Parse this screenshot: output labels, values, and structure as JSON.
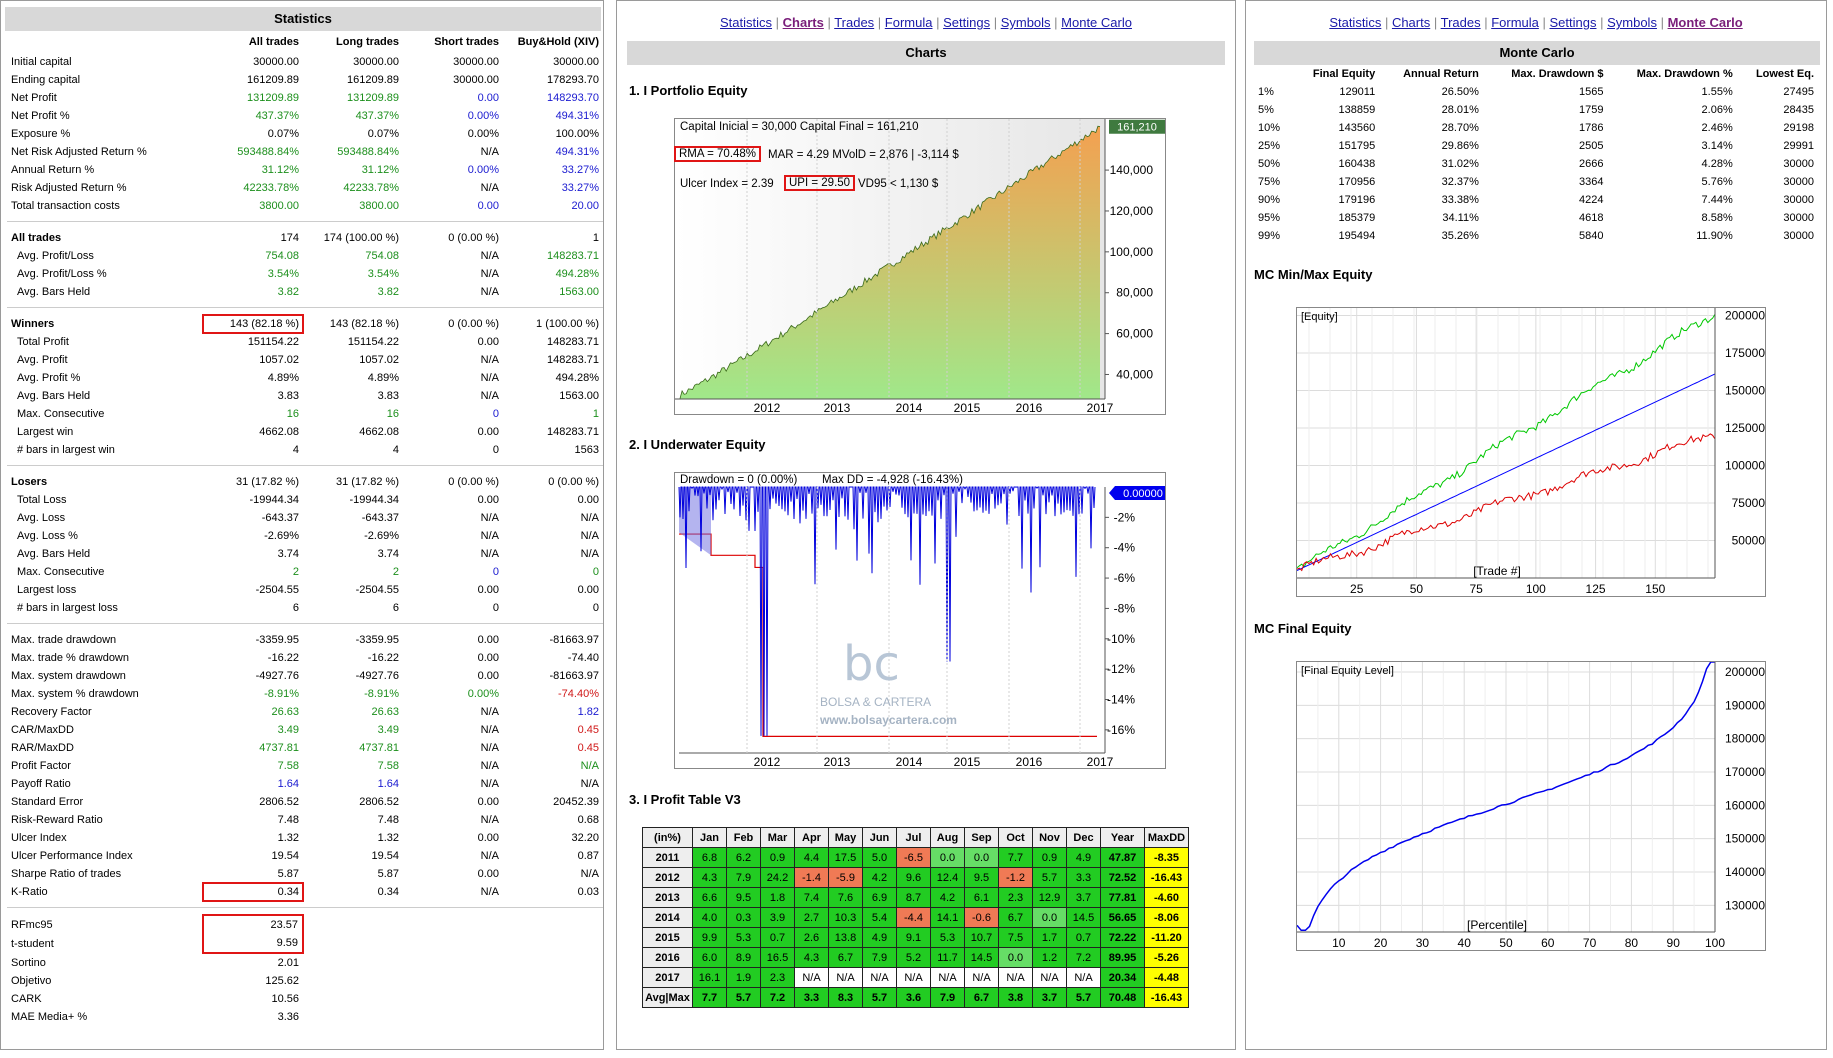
{
  "statistics": {
    "title": "Statistics",
    "headers": [
      "",
      "All trades",
      "Long trades",
      "Short trades",
      "Buy&Hold (XIV)"
    ],
    "rows": [
      [
        "Initial capital",
        "30000.00",
        "30000.00",
        "30000.00",
        "30000.00"
      ],
      [
        "Ending capital",
        "161209.89",
        "161209.89",
        "30000.00",
        "178293.70"
      ],
      [
        "Net Profit",
        "131209.89",
        "131209.89",
        "0.00",
        "148293.70"
      ],
      [
        "Net Profit %",
        "437.37%",
        "437.37%",
        "0.00%",
        "494.31%"
      ],
      [
        "Exposure %",
        "0.07%",
        "0.07%",
        "0.00%",
        "100.00%"
      ],
      [
        "Net Risk Adjusted Return %",
        "593488.84%",
        "593488.84%",
        "N/A",
        "494.31%"
      ],
      [
        "Annual Return %",
        "31.12%",
        "31.12%",
        "0.00%",
        "33.27%"
      ],
      [
        "Risk Adjusted Return %",
        "42233.78%",
        "42233.78%",
        "N/A",
        "33.27%"
      ],
      [
        "Total transaction costs",
        "3800.00",
        "3800.00",
        "0.00",
        "20.00"
      ],
      null,
      [
        "All trades",
        "174",
        "174 (100.00 %)",
        "0 (0.00 %)",
        "1"
      ],
      [
        "Avg. Profit/Loss",
        "754.08",
        "754.08",
        "N/A",
        "148283.71"
      ],
      [
        "Avg. Profit/Loss %",
        "3.54%",
        "3.54%",
        "N/A",
        "494.28%"
      ],
      [
        "Avg. Bars Held",
        "3.82",
        "3.82",
        "N/A",
        "1563.00"
      ],
      null,
      [
        "Winners",
        "143 (82.18 %)",
        "143 (82.18 %)",
        "0 (0.00 %)",
        "1 (100.00 %)"
      ],
      [
        "Total Profit",
        "151154.22",
        "151154.22",
        "0.00",
        "148283.71"
      ],
      [
        "Avg. Profit",
        "1057.02",
        "1057.02",
        "N/A",
        "148283.71"
      ],
      [
        "Avg. Profit %",
        "4.89%",
        "4.89%",
        "N/A",
        "494.28%"
      ],
      [
        "Avg. Bars Held",
        "3.83",
        "3.83",
        "N/A",
        "1563.00"
      ],
      [
        "Max. Consecutive",
        "16",
        "16",
        "0",
        "1"
      ],
      [
        "Largest win",
        "4662.08",
        "4662.08",
        "0.00",
        "148283.71"
      ],
      [
        "# bars in largest win",
        "4",
        "4",
        "0",
        "1563"
      ],
      null,
      [
        "Losers",
        "31 (17.82 %)",
        "31 (17.82 %)",
        "0 (0.00 %)",
        "0 (0.00 %)"
      ],
      [
        "Total Loss",
        "-19944.34",
        "-19944.34",
        "0.00",
        "0.00"
      ],
      [
        "Avg. Loss",
        "-643.37",
        "-643.37",
        "N/A",
        "N/A"
      ],
      [
        "Avg. Loss %",
        "-2.69%",
        "-2.69%",
        "N/A",
        "N/A"
      ],
      [
        "Avg. Bars Held",
        "3.74",
        "3.74",
        "N/A",
        "N/A"
      ],
      [
        "Max. Consecutive",
        "2",
        "2",
        "0",
        "0"
      ],
      [
        "Largest loss",
        "-2504.55",
        "-2504.55",
        "0.00",
        "0.00"
      ],
      [
        "# bars in largest loss",
        "6",
        "6",
        "0",
        "0"
      ],
      null,
      [
        "Max. trade drawdown",
        "-3359.95",
        "-3359.95",
        "0.00",
        "-81663.97"
      ],
      [
        "Max. trade % drawdown",
        "-16.22",
        "-16.22",
        "0.00",
        "-74.40"
      ],
      [
        "Max. system drawdown",
        "-4927.76",
        "-4927.76",
        "0.00",
        "-81663.97"
      ],
      [
        "Max. system % drawdown",
        "-8.91%",
        "-8.91%",
        "0.00%",
        "-74.40%"
      ],
      [
        "Recovery Factor",
        "26.63",
        "26.63",
        "N/A",
        "1.82"
      ],
      [
        "CAR/MaxDD",
        "3.49",
        "3.49",
        "N/A",
        "0.45"
      ],
      [
        "RAR/MaxDD",
        "4737.81",
        "4737.81",
        "N/A",
        "0.45"
      ],
      [
        "Profit Factor",
        "7.58",
        "7.58",
        "N/A",
        "N/A"
      ],
      [
        "Payoff Ratio",
        "1.64",
        "1.64",
        "N/A",
        "N/A"
      ],
      [
        "Standard Error",
        "2806.52",
        "2806.52",
        "0.00",
        "20452.39"
      ],
      [
        "Risk-Reward Ratio",
        "7.48",
        "7.48",
        "N/A",
        "0.68"
      ],
      [
        "Ulcer Index",
        "1.32",
        "1.32",
        "0.00",
        "32.20"
      ],
      [
        "Ulcer Performance Index",
        "19.54",
        "19.54",
        "N/A",
        "0.87"
      ],
      [
        "Sharpe Ratio of trades",
        "5.87",
        "5.87",
        "0.00",
        "N/A"
      ],
      [
        "K-Ratio",
        "0.34",
        "0.34",
        "N/A",
        "0.03"
      ],
      null,
      [
        "RFmc95",
        "23.57",
        "",
        "",
        ""
      ],
      [
        "t-student",
        "9.59",
        "",
        "",
        ""
      ],
      [
        "Sortino",
        "2.01",
        "",
        "",
        ""
      ],
      [
        "Objetivo",
        "125.62",
        "",
        "",
        ""
      ],
      [
        "CARK",
        "10.56",
        "",
        "",
        ""
      ],
      [
        "MAE Media+ %",
        "3.36",
        "",
        "",
        ""
      ]
    ]
  },
  "nav": {
    "items": [
      "Statistics",
      "Charts",
      "Trades",
      "Formula",
      "Settings",
      "Symbols",
      "Monte Carlo"
    ]
  },
  "charts": {
    "title": "Charts",
    "s1": "1. I Portfolio Equity",
    "s2": "2. I Underwater Equity",
    "s3": "3. I Profit Table V3",
    "eq": {
      "line1": "Capital Inicial = 30,000   Capital Final = 161,210",
      "rma": "RMA = 70.48%",
      "mar": "MAR = 4.29   MVolD = 2,876 | -3,114 $",
      "ulcer": "Ulcer Index = 2.39",
      "upi": "UPI = 29.50",
      "vd": "VD95 < 1,130 $",
      "last": "161,210"
    },
    "dd": {
      "label1": "Drawdown = 0 (0.00%)",
      "label2": "Max DD = -4,928 (-16.43%)",
      "last": "0.00000",
      "watermark1": "BOLSA & CARTERA",
      "watermark2": "www.bolsaycartera.com"
    }
  },
  "profit_table": {
    "headers": [
      "(in%)",
      "Jan",
      "Feb",
      "Mar",
      "Apr",
      "May",
      "Jun",
      "Jul",
      "Aug",
      "Sep",
      "Oct",
      "Nov",
      "Dec",
      "Year",
      "MaxDD"
    ],
    "rows": [
      [
        "2011",
        "6.8",
        "6.2",
        "0.9",
        "4.4",
        "17.5",
        "5.0",
        "-6.5",
        "0.0",
        "0.0",
        "7.7",
        "0.9",
        "4.9",
        "47.87",
        "-8.35"
      ],
      [
        "2012",
        "4.3",
        "7.9",
        "24.2",
        "-1.4",
        "-5.9",
        "4.2",
        "9.6",
        "12.4",
        "9.5",
        "-1.2",
        "5.7",
        "3.3",
        "72.52",
        "-16.43"
      ],
      [
        "2013",
        "6.6",
        "9.5",
        "1.8",
        "7.4",
        "7.6",
        "6.9",
        "8.7",
        "4.2",
        "6.1",
        "2.3",
        "12.9",
        "3.7",
        "77.81",
        "-4.60"
      ],
      [
        "2014",
        "4.0",
        "0.3",
        "3.9",
        "2.7",
        "10.3",
        "5.4",
        "-4.4",
        "14.1",
        "-0.6",
        "6.7",
        "0.0",
        "14.5",
        "56.65",
        "-8.06"
      ],
      [
        "2015",
        "9.9",
        "5.3",
        "0.7",
        "2.6",
        "13.8",
        "4.9",
        "9.1",
        "5.3",
        "10.7",
        "7.5",
        "1.7",
        "0.7",
        "72.22",
        "-11.20"
      ],
      [
        "2016",
        "6.0",
        "8.9",
        "16.5",
        "4.3",
        "6.7",
        "7.9",
        "5.2",
        "11.7",
        "14.5",
        "0.0",
        "1.2",
        "7.2",
        "89.95",
        "-5.26"
      ],
      [
        "2017",
        "16.1",
        "1.9",
        "2.3",
        "N/A",
        "N/A",
        "N/A",
        "N/A",
        "N/A",
        "N/A",
        "N/A",
        "N/A",
        "N/A",
        "20.34",
        "-4.48"
      ],
      [
        "Avg|Max",
        "7.7",
        "5.7",
        "7.2",
        "3.3",
        "8.3",
        "5.7",
        "3.6",
        "7.9",
        "6.7",
        "3.8",
        "3.7",
        "5.7",
        "70.48",
        "-16.43"
      ]
    ]
  },
  "montecarlo": {
    "title": "Monte Carlo",
    "headers": [
      "",
      "Final Equity",
      "Annual Return",
      "Max. Drawdown $",
      "Max. Drawdown %",
      "Lowest Eq."
    ],
    "rows": [
      [
        "1%",
        "129011",
        "26.50%",
        "1565",
        "1.55%",
        "27495"
      ],
      [
        "5%",
        "138859",
        "28.01%",
        "1759",
        "2.06%",
        "28435"
      ],
      [
        "10%",
        "143560",
        "28.70%",
        "1786",
        "2.46%",
        "29198"
      ],
      [
        "25%",
        "151795",
        "29.86%",
        "2505",
        "3.14%",
        "29991"
      ],
      [
        "50%",
        "160438",
        "31.02%",
        "2666",
        "4.28%",
        "30000"
      ],
      [
        "75%",
        "170956",
        "32.37%",
        "3364",
        "5.76%",
        "30000"
      ],
      [
        "90%",
        "179196",
        "33.38%",
        "4224",
        "7.44%",
        "30000"
      ],
      [
        "95%",
        "185379",
        "34.11%",
        "4618",
        "8.58%",
        "30000"
      ],
      [
        "99%",
        "195494",
        "35.26%",
        "5840",
        "11.90%",
        "30000"
      ]
    ],
    "mm_title": "MC Min/Max Equity",
    "mm_label": "[Equity]",
    "mm_xlabel": "[Trade #]",
    "fe_title": "MC Final Equity",
    "fe_label": "[Final Equity Level]",
    "fe_xlabel": "[Percentile]"
  },
  "chart_data": [
    {
      "type": "area",
      "title": "",
      "x_ticks": [
        "2012",
        "2013",
        "2014",
        "2015",
        "2016",
        "2017"
      ],
      "y_ticks": [
        40000,
        60000,
        80000,
        100000,
        120000,
        140000
      ],
      "ylim": [
        28000,
        165000
      ],
      "start": 30000,
      "end": 161210
    },
    {
      "type": "line",
      "title": "",
      "x_ticks": [
        "2012",
        "2013",
        "2014",
        "2015",
        "2016",
        "2017"
      ],
      "y_ticks": [
        "-2%",
        "-4%",
        "-6%",
        "-8%",
        "-10%",
        "-12%",
        "-14%",
        "-16%"
      ],
      "ylim": [
        -17,
        0.5
      ],
      "max_dd": -16.43
    },
    {
      "type": "line",
      "title": "",
      "x_ticks": [
        25,
        50,
        75,
        100,
        125,
        150
      ],
      "y_ticks": [
        50000,
        75000,
        100000,
        125000,
        150000,
        175000,
        200000
      ],
      "xlim": [
        0,
        175
      ],
      "ylim": [
        25000,
        205000
      ],
      "series": [
        {
          "color": "#00c800",
          "start": 30000,
          "end": 201000
        },
        {
          "color": "#0000ff",
          "start": 30000,
          "end": 161000
        },
        {
          "color": "#dd0000",
          "start": 30000,
          "end": 121000
        }
      ]
    },
    {
      "type": "line",
      "title": "",
      "x_ticks": [
        10,
        20,
        30,
        40,
        50,
        60,
        70,
        80,
        90,
        100
      ],
      "y_ticks": [
        130000,
        140000,
        150000,
        160000,
        170000,
        180000,
        190000,
        200000
      ],
      "xlim": [
        0,
        100
      ],
      "ylim": [
        122000,
        203000
      ]
    }
  ],
  "colors": {
    "accent_green": "#1c8f1c",
    "accent_blue": "#1a1ad0",
    "accent_red": "#d01818",
    "pos_cell": "#22cc22",
    "neg_cell": "#ee6644",
    "year_cell": "#ffff00"
  }
}
